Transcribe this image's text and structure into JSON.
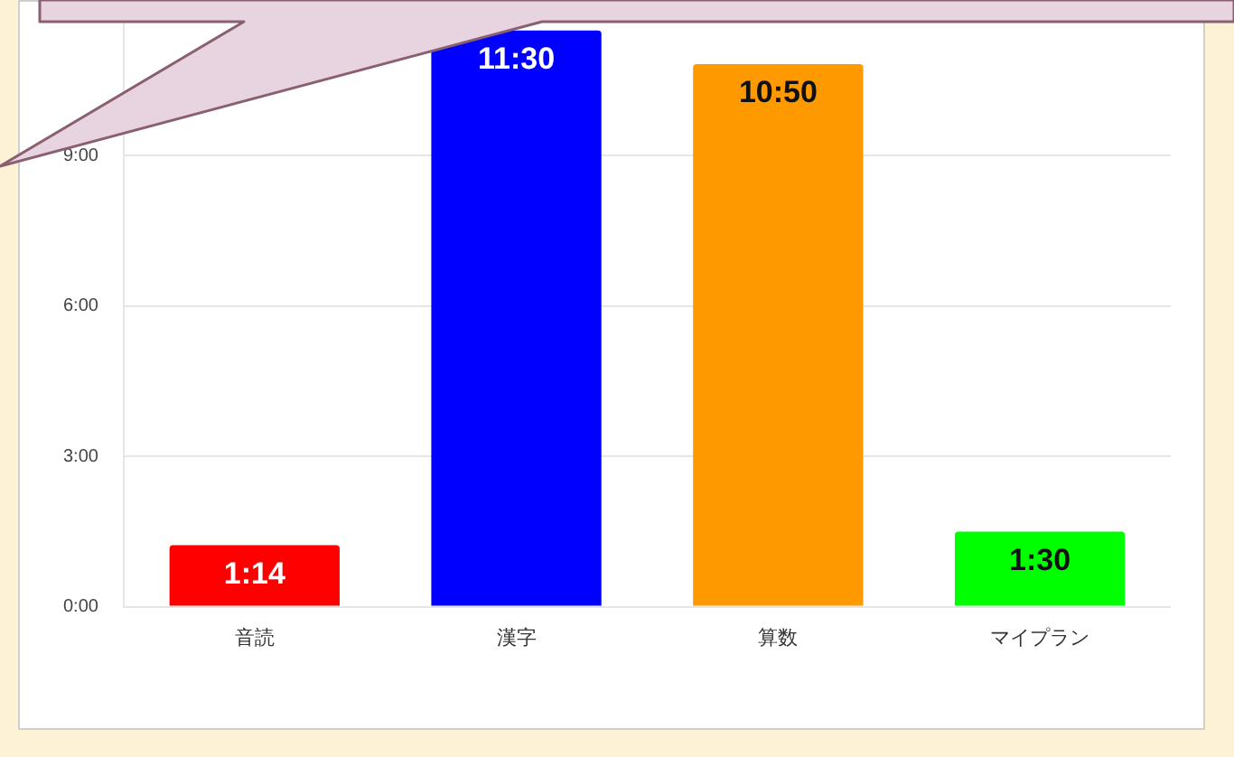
{
  "chart_data": {
    "type": "bar",
    "categories": [
      "音読",
      "漢字",
      "算数",
      "マイプラン"
    ],
    "values": [
      1.23,
      11.5,
      10.83,
      1.5
    ],
    "colors": [
      "#ff0000",
      "#0000ff",
      "#ff9900",
      "#00ff00"
    ],
    "value_labels": [
      "1:14",
      "11:30",
      "10:50",
      "1:30"
    ],
    "ylim": [
      0,
      12
    ],
    "yticks": [
      {
        "value": 0,
        "label": "0:00"
      },
      {
        "value": 3,
        "label": "3:00"
      },
      {
        "value": 6,
        "label": "6:00"
      },
      {
        "value": 9,
        "label": "9:00"
      }
    ],
    "grid": "y",
    "legend": false
  }
}
